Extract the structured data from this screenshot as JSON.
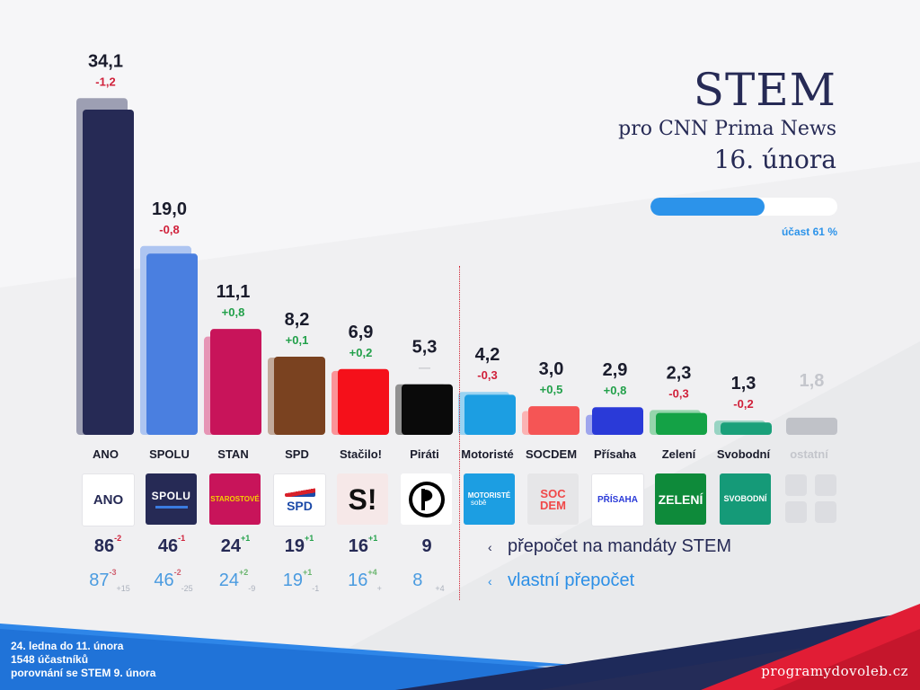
{
  "header": {
    "pollster": "STEM",
    "client": "pro CNN Prima News",
    "date": "16. února"
  },
  "turnout": {
    "label": "účast 61 %",
    "value": 61
  },
  "chart_data": {
    "type": "bar",
    "categories": [
      "ANO",
      "SPOLU",
      "STAN",
      "SPD",
      "Stačilo!",
      "Piráti",
      "Motoristé",
      "SOCDEM",
      "Přísaha",
      "Zelení",
      "Svobodní",
      "ostatní"
    ],
    "values": [
      34.1,
      19.0,
      11.1,
      8.2,
      6.9,
      5.3,
      4.2,
      3.0,
      2.9,
      2.3,
      1.3,
      1.8
    ],
    "value_labels": [
      "34,1",
      "19,0",
      "11,1",
      "8,2",
      "6,9",
      "5,3",
      "4,2",
      "3,0",
      "2,9",
      "2,3",
      "1,3",
      "1,8"
    ],
    "previous_values": [
      35.3,
      19.8,
      10.3,
      8.1,
      6.7,
      5.3,
      4.5,
      2.5,
      2.1,
      2.6,
      1.5,
      1.8
    ],
    "change_labels": [
      "-1,2",
      "-0,8",
      "+0,8",
      "+0,1",
      "+0,2",
      "—",
      "-0,3",
      "+0,5",
      "+0,8",
      "-0,3",
      "-0,2",
      ""
    ],
    "change_types": [
      "neg",
      "neg",
      "pos",
      "pos",
      "pos",
      "none",
      "neg",
      "pos",
      "pos",
      "neg",
      "neg",
      "none"
    ],
    "colors": [
      "#262a55",
      "#4a7fe0",
      "#c8145a",
      "#7a4220",
      "#f5101a",
      "#0a0a0a",
      "#1c9ee2",
      "#f55555",
      "#2a3ad8",
      "#14a246",
      "#1aa07a",
      "#c0c2c8"
    ],
    "threshold": 5
  },
  "logos": [
    {
      "name": "ano-logo",
      "text": "ANO"
    },
    {
      "name": "spolu-logo",
      "text": "SPOLU"
    },
    {
      "name": "starostove-logo",
      "text": "STAROSTOVÉ"
    },
    {
      "name": "spd-logo",
      "text": "SPD"
    },
    {
      "name": "stacilo-logo",
      "text": "S!"
    },
    {
      "name": "pirati-logo",
      "text": "pirate-flag-icon"
    },
    {
      "name": "motoriste-logo",
      "text": "MOTORISTÉ",
      "sub": "sobě"
    },
    {
      "name": "socdem-logo",
      "text": "SOC",
      "sub": "DEM"
    },
    {
      "name": "prisaha-logo",
      "text": "PŘÍSAHA"
    },
    {
      "name": "zeleni-logo",
      "text": "ZELENÍ"
    },
    {
      "name": "svobodni-logo",
      "text": "SVOBODNÍ"
    }
  ],
  "seats_stem": [
    {
      "v": "86",
      "d": "-2",
      "t": "neg"
    },
    {
      "v": "46",
      "d": "-1",
      "t": "neg"
    },
    {
      "v": "24",
      "d": "+1",
      "t": "pos"
    },
    {
      "v": "19",
      "d": "+1",
      "t": "pos"
    },
    {
      "v": "16",
      "d": "+1",
      "t": "pos"
    },
    {
      "v": "9",
      "d": "",
      "t": "none"
    }
  ],
  "seats_custom": [
    {
      "v": "87",
      "d": "-3",
      "t": "neg",
      "s": "+15"
    },
    {
      "v": "46",
      "d": "-2",
      "t": "neg",
      "s": "-25"
    },
    {
      "v": "24",
      "d": "+2",
      "t": "pos",
      "s": "-9"
    },
    {
      "v": "19",
      "d": "+1",
      "t": "pos",
      "s": "-1"
    },
    {
      "v": "16",
      "d": "+4",
      "t": "pos",
      "s": "+"
    },
    {
      "v": "8",
      "d": "",
      "t": "none",
      "s": "+4"
    }
  ],
  "menu": {
    "stem_label": "přepočet na mandáty STEM",
    "custom_label": "vlastní přepočet"
  },
  "footer": {
    "line1": "24. ledna do 11. února",
    "line2": "1548 účastníků",
    "line3": "porovnání se STEM 9. února",
    "site": "programydovoleb.cz"
  }
}
